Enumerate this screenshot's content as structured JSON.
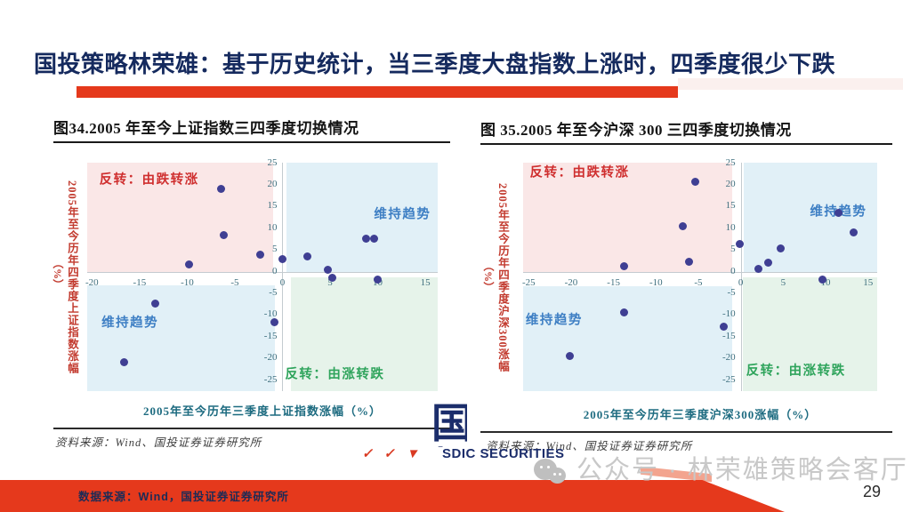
{
  "slide": {
    "title": "国投策略林荣雄：基于历史统计，当三季度大盘指数上涨时，四季度很少下跌",
    "title_color": "#152a5e",
    "accent_red": "#e5391c",
    "page_number": "29",
    "footer_source": "数据来源：Wind，国投证券证券研究所",
    "watermark_text": "公众号 · 林荣雄策略会客厅",
    "logo": {
      "marks": [
        "✓",
        "✓",
        "▼"
      ],
      "glyph": "国投",
      "text": "SDIC SECURITIES"
    }
  },
  "chart_data": [
    {
      "type": "scatter",
      "title": "图34.2005 年至今上证指数三四季度切换情况",
      "source": "资料来源：Wind、国投证券证券研究所",
      "xlabel": "2005年至今历年三季度上证指数涨幅（%）",
      "ylabel": "2005年至今历年四季度上证指数涨幅",
      "ylabel_unit": "（%）",
      "xticks": [
        -20,
        -15,
        -10,
        -5,
        0,
        5,
        10,
        15
      ],
      "yticks": [
        25,
        20,
        15,
        10,
        5,
        0,
        -5,
        -10,
        -15,
        -20,
        -25
      ],
      "xlim": [
        -20.5,
        16.3
      ],
      "ylim": [
        -27.5,
        25.1
      ],
      "grid": false,
      "legend": null,
      "point_color": "#3f3f93",
      "tick_color": "#40707f",
      "axis_color": "#c4cbd0",
      "points": [
        [
          -16.6,
          -20.9
        ],
        [
          -13.4,
          -7.4
        ],
        [
          -9.8,
          1.6
        ],
        [
          -6.4,
          19.0
        ],
        [
          -6.2,
          8.5
        ],
        [
          -2.3,
          4.0
        ],
        [
          -0.8,
          -11.6
        ],
        [
          0.0,
          2.8
        ],
        [
          2.6,
          3.6
        ],
        [
          4.8,
          0.4
        ],
        [
          5.2,
          -1.5
        ],
        [
          8.8,
          7.6
        ],
        [
          9.6,
          7.6
        ],
        [
          10.0,
          -1.9
        ]
      ],
      "quadrants": [
        {
          "label": "反转：由跌转涨",
          "x": [
            -20.5,
            -1.0
          ],
          "y": [
            0,
            25.1
          ],
          "bg": "#fae7e7",
          "label_color": "#cf2f2f",
          "label_at": [
            -14.0,
            21.5
          ]
        },
        {
          "label": "维持趋势",
          "x": [
            0.45,
            16.3
          ],
          "y": [
            0,
            25.1
          ],
          "bg": "#e1f0f7",
          "label_color": "#3e7fc4",
          "label_at": [
            12.6,
            13.5
          ]
        },
        {
          "label": "维持趋势",
          "x": [
            -20.5,
            -0.8
          ],
          "y": [
            -27.5,
            -3.2
          ],
          "bg": "#e1f0f7",
          "label_color": "#3e7fc4",
          "label_at": [
            -16.0,
            -11.5
          ]
        },
        {
          "label": "反转：由涨转跌",
          "x": [
            0.9,
            16.3
          ],
          "y": [
            -27.5,
            -1.2
          ],
          "bg": "#e6f3ea",
          "label_color": "#2fa45c",
          "label_at": [
            5.5,
            -23.5
          ]
        }
      ]
    },
    {
      "type": "scatter",
      "title": "图 35.2005 年至今沪深 300 三四季度切换情况",
      "source": "资料来源：Wind、国投证券证券研究所",
      "xlabel": "2005年至今历年三季度沪深300涨幅（%）",
      "ylabel": "2005年至今历年四季度沪深300涨幅",
      "ylabel_unit": "（%）",
      "xticks": [
        -25,
        -20,
        -15,
        -10,
        -5,
        0,
        5,
        10,
        15
      ],
      "yticks": [
        25,
        20,
        15,
        10,
        5,
        0,
        -5,
        -10,
        -15,
        -20,
        -25
      ],
      "xlim": [
        -25.66,
        16.08
      ],
      "ylim": [
        -27.5,
        25.1
      ],
      "grid": false,
      "legend": null,
      "point_color": "#3f3f93",
      "tick_color": "#40707f",
      "axis_color": "#c4cbd0",
      "points": [
        [
          -20.2,
          -19.4
        ],
        [
          -13.8,
          1.2
        ],
        [
          -13.8,
          -9.3
        ],
        [
          -6.8,
          10.4
        ],
        [
          -6.1,
          2.2
        ],
        [
          -5.4,
          20.6
        ],
        [
          -2.0,
          -12.7
        ],
        [
          -0.1,
          6.3
        ],
        [
          2.1,
          0.6
        ],
        [
          3.2,
          2.1
        ],
        [
          4.7,
          5.3
        ],
        [
          9.6,
          -1.9
        ],
        [
          11.5,
          13.5
        ],
        [
          13.3,
          9.1
        ]
      ],
      "quadrants": [
        {
          "label": "反转：由跌转涨",
          "x": [
            -25.66,
            -1.0
          ],
          "y": [
            0,
            25.1
          ],
          "bg": "#fae7e7",
          "label_color": "#cf2f2f",
          "label_at": [
            -19.0,
            23.0
          ]
        },
        {
          "label": "维持趋势",
          "x": [
            0.4,
            16.08
          ],
          "y": [
            0,
            25.1
          ],
          "bg": "#e1f0f7",
          "label_color": "#3e7fc4",
          "label_at": [
            11.5,
            14.0
          ]
        },
        {
          "label": "维持趋势",
          "x": [
            -25.66,
            -1.0
          ],
          "y": [
            -27.5,
            -3.4
          ],
          "bg": "#e1f0f7",
          "label_color": "#3e7fc4",
          "label_at": [
            -22.0,
            -11.0
          ]
        },
        {
          "label": "反转：由涨转跌",
          "x": [
            0.2,
            16.08
          ],
          "y": [
            -27.5,
            -1.2
          ],
          "bg": "#e6f3ea",
          "label_color": "#2fa45c",
          "label_at": [
            6.5,
            -22.5
          ]
        }
      ]
    }
  ]
}
